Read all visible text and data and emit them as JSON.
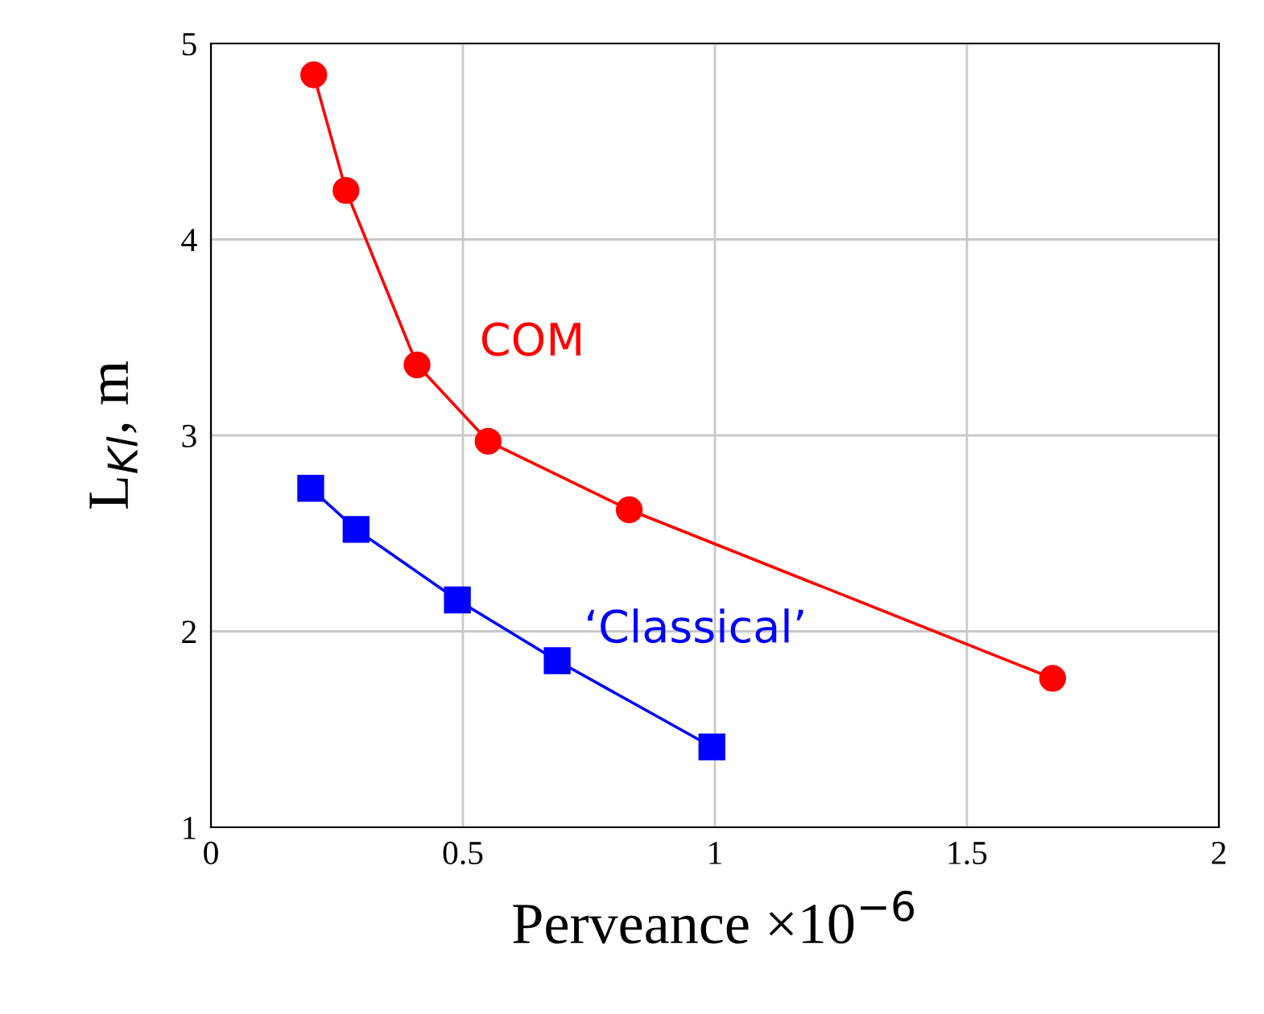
{
  "chart_data": {
    "type": "line",
    "xlabel": "Perveance ×10$^{−6}$",
    "ylabel": "L$_{Kl}$, m",
    "xlim": [
      0,
      2
    ],
    "xticks": [
      0,
      0.5,
      1,
      1.5,
      2
    ],
    "ylim": [
      1,
      5
    ],
    "yticks": [
      1,
      2,
      3,
      4,
      5
    ],
    "grid": true,
    "series": [
      {
        "name": "COM",
        "color": "#ff0000",
        "marker": "circle",
        "x": [
          0.204,
          0.268,
          0.409,
          0.55,
          0.83,
          1.67
        ],
        "values": [
          4.84,
          4.25,
          3.36,
          2.97,
          2.62,
          1.76
        ]
      },
      {
        "name": "‘Classical’",
        "color": "#0000ff",
        "marker": "square",
        "x": [
          0.198,
          0.288,
          0.489,
          0.687,
          0.994
        ],
        "values": [
          2.73,
          2.52,
          2.16,
          1.85,
          1.41
        ]
      }
    ]
  }
}
